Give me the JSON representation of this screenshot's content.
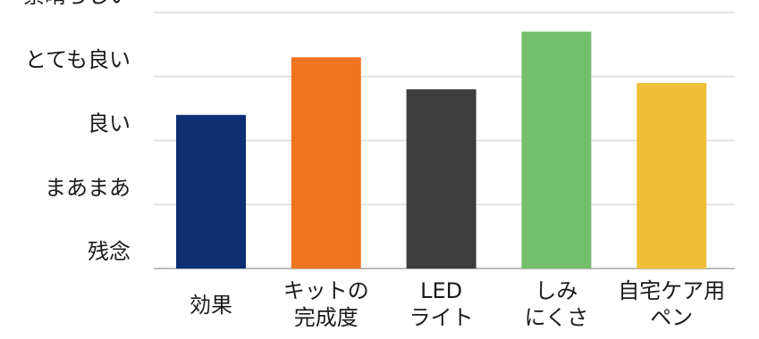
{
  "chart_data": {
    "type": "bar",
    "title": "",
    "xlabel": "",
    "ylabel": "",
    "y_ticks": [
      "残念",
      "まあまあ",
      "良い",
      "とても良い",
      "素晴らしい"
    ],
    "ylim": [
      0,
      4
    ],
    "grid": true,
    "legend": "none",
    "categories": [
      [
        "効果"
      ],
      [
        "キットの",
        "完成度"
      ],
      [
        "LED",
        "ライト"
      ],
      [
        "しみ",
        "にくさ"
      ],
      [
        "自宅ケア用",
        "ペン"
      ]
    ],
    "values": [
      2.4,
      3.3,
      2.8,
      3.7,
      2.9
    ],
    "colors": [
      "#0d2f73",
      "#ee7420",
      "#3d3d3d",
      "#74bf6b",
      "#f0bf3a"
    ]
  }
}
